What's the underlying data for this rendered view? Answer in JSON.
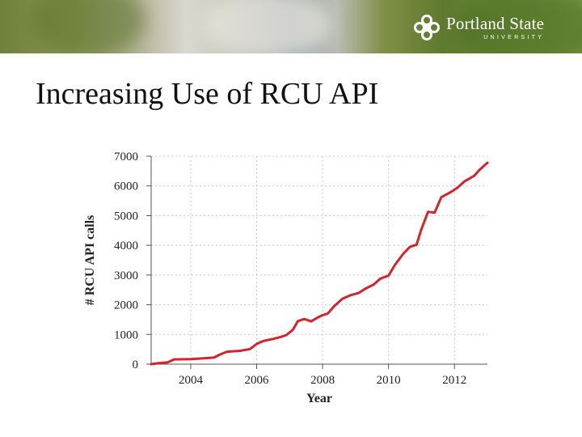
{
  "banner": {
    "logo_name": "Portland State",
    "logo_sub": "UNIVERSITY",
    "logo_icon": "psu-logo-icon"
  },
  "slide": {
    "title": "Increasing Use of RCU API"
  },
  "colors": {
    "line": "#d4232a",
    "grid": "#c8c8c8",
    "axis": "#555555",
    "text": "#222222"
  },
  "chart_data": {
    "type": "line",
    "title": "",
    "xlabel": "Year",
    "ylabel": "# RCU API calls",
    "xlim": [
      2002.8,
      2013.0
    ],
    "ylim": [
      0,
      7000
    ],
    "x_ticks": [
      2004,
      2006,
      2008,
      2010,
      2012
    ],
    "y_ticks": [
      0,
      1000,
      2000,
      3000,
      4000,
      5000,
      6000,
      7000
    ],
    "grid": true,
    "legend": "none",
    "series": [
      {
        "name": "",
        "points": [
          [
            2002.8,
            0
          ],
          [
            2003.0,
            30
          ],
          [
            2003.3,
            60
          ],
          [
            2003.5,
            160
          ],
          [
            2004.0,
            170
          ],
          [
            2004.3,
            190
          ],
          [
            2004.7,
            220
          ],
          [
            2004.9,
            330
          ],
          [
            2005.1,
            420
          ],
          [
            2005.5,
            450
          ],
          [
            2005.8,
            510
          ],
          [
            2006.0,
            680
          ],
          [
            2006.2,
            780
          ],
          [
            2006.5,
            850
          ],
          [
            2006.75,
            920
          ],
          [
            2006.9,
            980
          ],
          [
            2007.1,
            1160
          ],
          [
            2007.25,
            1450
          ],
          [
            2007.45,
            1520
          ],
          [
            2007.65,
            1440
          ],
          [
            2007.85,
            1570
          ],
          [
            2008.0,
            1650
          ],
          [
            2008.15,
            1700
          ],
          [
            2008.35,
            1950
          ],
          [
            2008.6,
            2200
          ],
          [
            2008.85,
            2320
          ],
          [
            2009.1,
            2400
          ],
          [
            2009.3,
            2540
          ],
          [
            2009.55,
            2680
          ],
          [
            2009.75,
            2880
          ],
          [
            2010.0,
            2980
          ],
          [
            2010.2,
            3350
          ],
          [
            2010.45,
            3720
          ],
          [
            2010.65,
            3950
          ],
          [
            2010.85,
            4020
          ],
          [
            2011.0,
            4550
          ],
          [
            2011.2,
            5130
          ],
          [
            2011.4,
            5100
          ],
          [
            2011.6,
            5620
          ],
          [
            2011.9,
            5800
          ],
          [
            2012.1,
            5950
          ],
          [
            2012.3,
            6150
          ],
          [
            2012.6,
            6340
          ],
          [
            2012.75,
            6530
          ],
          [
            2013.0,
            6780
          ]
        ]
      }
    ]
  }
}
